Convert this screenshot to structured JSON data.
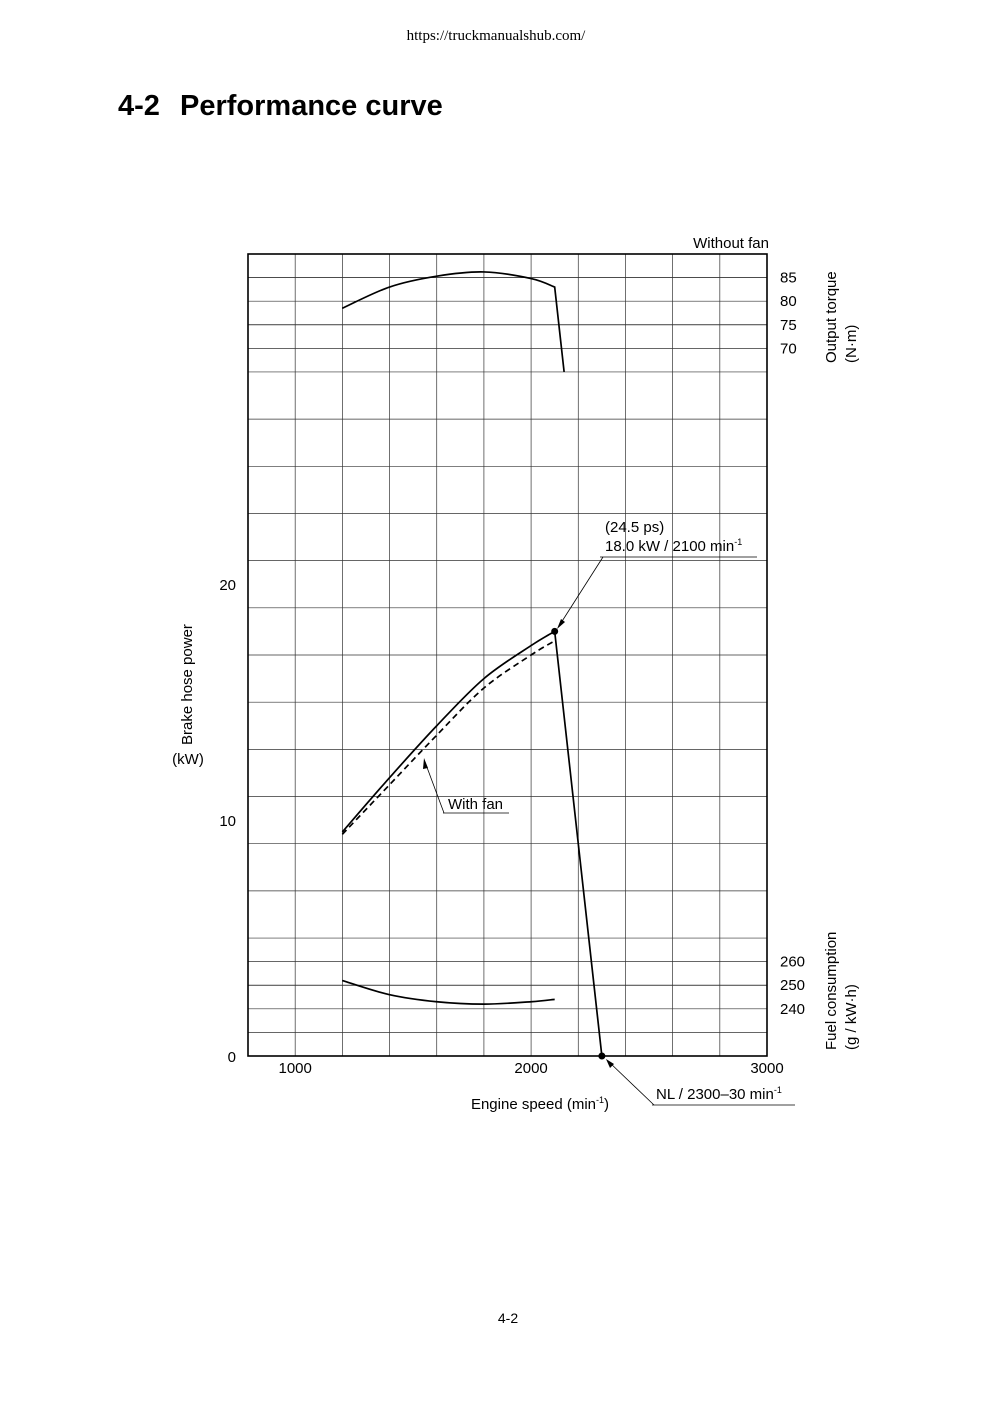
{
  "header": {
    "url": "https://truckmanualshub.com/"
  },
  "section": {
    "number": "4-2",
    "title": "Performance curve"
  },
  "footer": {
    "page": "4-2"
  },
  "chart_data": {
    "type": "line",
    "xlabel": "Engine speed (min",
    "xlabel_sup": "-1",
    "xlabel_close": ")",
    "x_ticks": [
      1000,
      2000,
      3000
    ],
    "xlim": [
      800,
      3000
    ],
    "y_left": {
      "label_line1": "Brake hose power",
      "label_line2": "(kW)",
      "ticks": [
        0,
        10,
        20
      ],
      "ylim": [
        0,
        34
      ]
    },
    "y_right_top": {
      "label_line1": "Output torque",
      "label_line2": "(N·m)",
      "ticks": [
        85,
        80,
        75,
        70
      ]
    },
    "y_right_bottom": {
      "label_line1": "Fuel consumption",
      "label_line2": "(g / kW·h)",
      "ticks": [
        260,
        250,
        240
      ]
    },
    "grid": true,
    "series": [
      {
        "name": "Without fan",
        "kind": "power",
        "style": "solid",
        "x": [
          1200,
          1400,
          1600,
          1800,
          2000,
          2100,
          2300
        ],
        "y": [
          9.5,
          11.8,
          14.0,
          16.0,
          17.4,
          18.0,
          0
        ]
      },
      {
        "name": "With fan",
        "kind": "power",
        "style": "dashed",
        "x": [
          1200,
          1400,
          1600,
          1800,
          2000,
          2100
        ],
        "y": [
          9.4,
          11.5,
          13.6,
          15.6,
          17.0,
          17.6
        ]
      },
      {
        "kind": "torque",
        "style": "solid",
        "x": [
          1200,
          1400,
          1600,
          1800,
          2000,
          2100,
          2140
        ],
        "y": [
          78.5,
          83.0,
          85.3,
          86.2,
          84.8,
          83.0,
          65.0
        ]
      },
      {
        "kind": "fuel",
        "style": "solid",
        "x": [
          1200,
          1400,
          1600,
          1800,
          2000,
          2100
        ],
        "y": [
          252,
          246,
          243,
          242,
          243,
          244
        ]
      }
    ],
    "annotations": {
      "without_fan": "Without fan",
      "with_fan": "With fan",
      "peak_ps": "(24.5 ps)",
      "peak_main": "18.0 kW / 2100 min",
      "peak_sup": "-1",
      "nl_main": "NL / 2300–30 min",
      "nl_sup": "-1"
    }
  }
}
